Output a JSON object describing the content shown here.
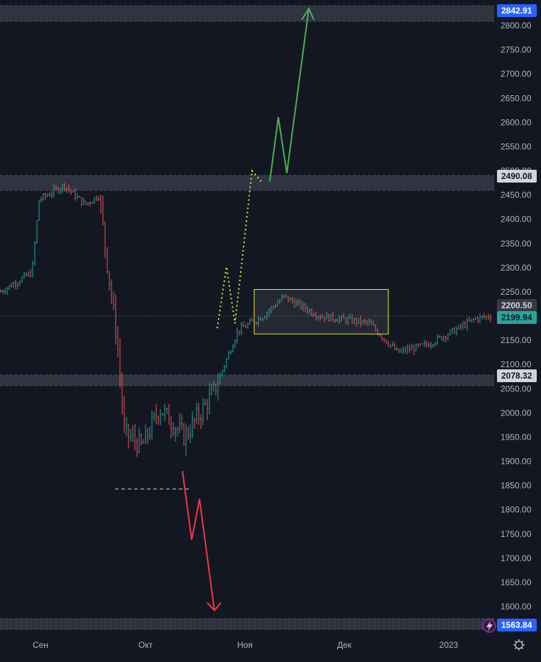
{
  "colors": {
    "background": "#131722",
    "grid": "#1c2030",
    "up": "#26a69a",
    "down": "#ef5350",
    "zone": "#363a45",
    "zone_border": "#4a4e5a",
    "axis_text": "#b2b5be",
    "last_price_badge": "#2962ff",
    "close_line": "#26a69a",
    "range_box": "#e6e63a",
    "bull_arrow": "#4caf50",
    "bear_arrow": "#f23645",
    "dotted_path": "#e6e63a"
  },
  "price_badges": {
    "top_level": "2842.91",
    "resistance": "2490.08",
    "prev_close": "2200.50",
    "last_price": "2199.94",
    "support": "2078.32",
    "bottom_level": "1563.84"
  },
  "icons": {
    "alert": "lightning-icon",
    "settings": "gear-icon"
  },
  "chart_data": {
    "type": "candlestick",
    "title": "",
    "xlabel": "",
    "ylabel": "",
    "y_ticks": [
      "2800.00",
      "2750.00",
      "2700.00",
      "2650.00",
      "2600.00",
      "2550.00",
      "2500.00",
      "2450.00",
      "2400.00",
      "2350.00",
      "2300.00",
      "2250.00",
      "2150.00",
      "2100.00",
      "2050.00",
      "2000.00",
      "1950.00",
      "1900.00",
      "1850.00",
      "1800.00",
      "1750.00",
      "1700.00",
      "1650.00",
      "1600.00"
    ],
    "ylim": [
      1555,
      2860
    ],
    "x_labels": [
      "Сен",
      "Окт",
      "Ноя",
      "Дек",
      "2023"
    ],
    "grid": false,
    "horizontal_zones": [
      {
        "center": 2842.91,
        "label": "2842.91"
      },
      {
        "center": 2490.08,
        "label": "2490.08"
      },
      {
        "center": 2078.32,
        "label": "2078.32"
      },
      {
        "center": 1563.84,
        "label": "1563.84"
      }
    ],
    "last_price": 2199.94,
    "prev_close": 2200.5,
    "range_box": {
      "start": "Ноя",
      "end": "Дек",
      "high": 2255,
      "low": 2163
    },
    "projection_up": [
      2175,
      2302,
      2185,
      2500,
      2478,
      2611,
      2495,
      2835
    ],
    "projection_down": [
      1880,
      1738,
      1822,
      1592
    ],
    "candle_trend": [
      {
        "t": "Сен",
        "price": 2250
      },
      {
        "t": "",
        "price": 2290
      },
      {
        "t": "",
        "price": 2440
      },
      {
        "t": "",
        "price": 2470
      },
      {
        "t": "",
        "price": 2430
      },
      {
        "t": "",
        "price": 2450
      },
      {
        "t": "",
        "price": 2320
      },
      {
        "t": "",
        "price": 2150
      },
      {
        "t": "Окт",
        "price": 1960
      },
      {
        "t": "",
        "price": 1930
      },
      {
        "t": "",
        "price": 2010
      },
      {
        "t": "",
        "price": 1950
      },
      {
        "t": "",
        "price": 2040
      },
      {
        "t": "Ноя",
        "price": 2170
      },
      {
        "t": "",
        "price": 2200
      },
      {
        "t": "",
        "price": 2240
      },
      {
        "t": "",
        "price": 2200
      },
      {
        "t": "",
        "price": 2190
      },
      {
        "t": "Дек",
        "price": 2185
      },
      {
        "t": "",
        "price": 2125
      },
      {
        "t": "",
        "price": 2140
      },
      {
        "t": "",
        "price": 2170
      },
      {
        "t": "2023",
        "price": 2195
      },
      {
        "t": "",
        "price": 2200
      }
    ]
  }
}
